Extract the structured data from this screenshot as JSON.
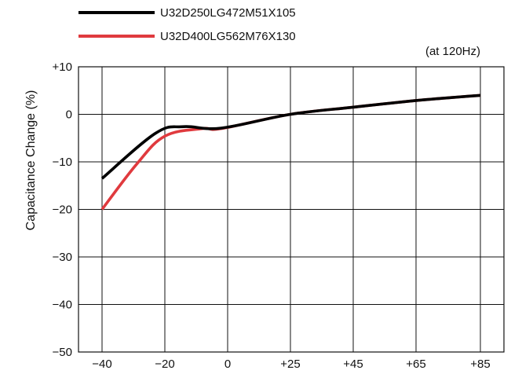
{
  "chart_data": {
    "type": "line",
    "title": "",
    "note": "(at 120Hz)",
    "xlabel": "",
    "ylabel": "Capacitance Change (%)",
    "ylim": [
      -50,
      10
    ],
    "y_ticks": [
      10,
      0,
      -10,
      -20,
      -30,
      -40,
      -50
    ],
    "y_tick_labels": [
      "+10",
      "0",
      "−10",
      "−20",
      "−30",
      "−40",
      "−50"
    ],
    "x_tick_labels": [
      "−40",
      "−20",
      "0",
      "+25",
      "+45",
      "+65",
      "+85"
    ],
    "grid": true,
    "legend_position": "top-left",
    "series": [
      {
        "name": "U32D250LG472M51X105",
        "color": "#000000",
        "points": [
          {
            "x": "−40",
            "xi": 0,
            "y": -13.5
          },
          {
            "x": "−20",
            "xi": 0.85,
            "y": -4.0
          },
          {
            "x": "−20",
            "xi": 1.3,
            "y": -2.6
          },
          {
            "x": "0",
            "xi": 1.9,
            "y": -2.9
          },
          {
            "x": "+25",
            "xi": 3.0,
            "y": 0.0
          },
          {
            "x": "+45",
            "xi": 4.0,
            "y": 1.5
          },
          {
            "x": "+65",
            "xi": 5.0,
            "y": 2.9
          },
          {
            "x": "+85",
            "xi": 6.0,
            "y": 4.0
          }
        ]
      },
      {
        "name": "U32D400LG562M76X130",
        "color": "#e03a3e",
        "points": [
          {
            "x": "−40",
            "xi": 0,
            "y": -20.0
          },
          {
            "x": "−20",
            "xi": 0.55,
            "y": -10.5
          },
          {
            "x": "−20",
            "xi": 1.0,
            "y": -4.6
          },
          {
            "x": "0",
            "xi": 1.6,
            "y": -3.0
          },
          {
            "x": "0",
            "xi": 1.9,
            "y": -3.0
          },
          {
            "x": "+25",
            "xi": 3.0,
            "y": 0.0
          },
          {
            "x": "+45",
            "xi": 4.0,
            "y": 1.5
          },
          {
            "x": "+65",
            "xi": 5.0,
            "y": 2.9
          },
          {
            "x": "+85",
            "xi": 6.0,
            "y": 4.0
          }
        ]
      }
    ]
  }
}
